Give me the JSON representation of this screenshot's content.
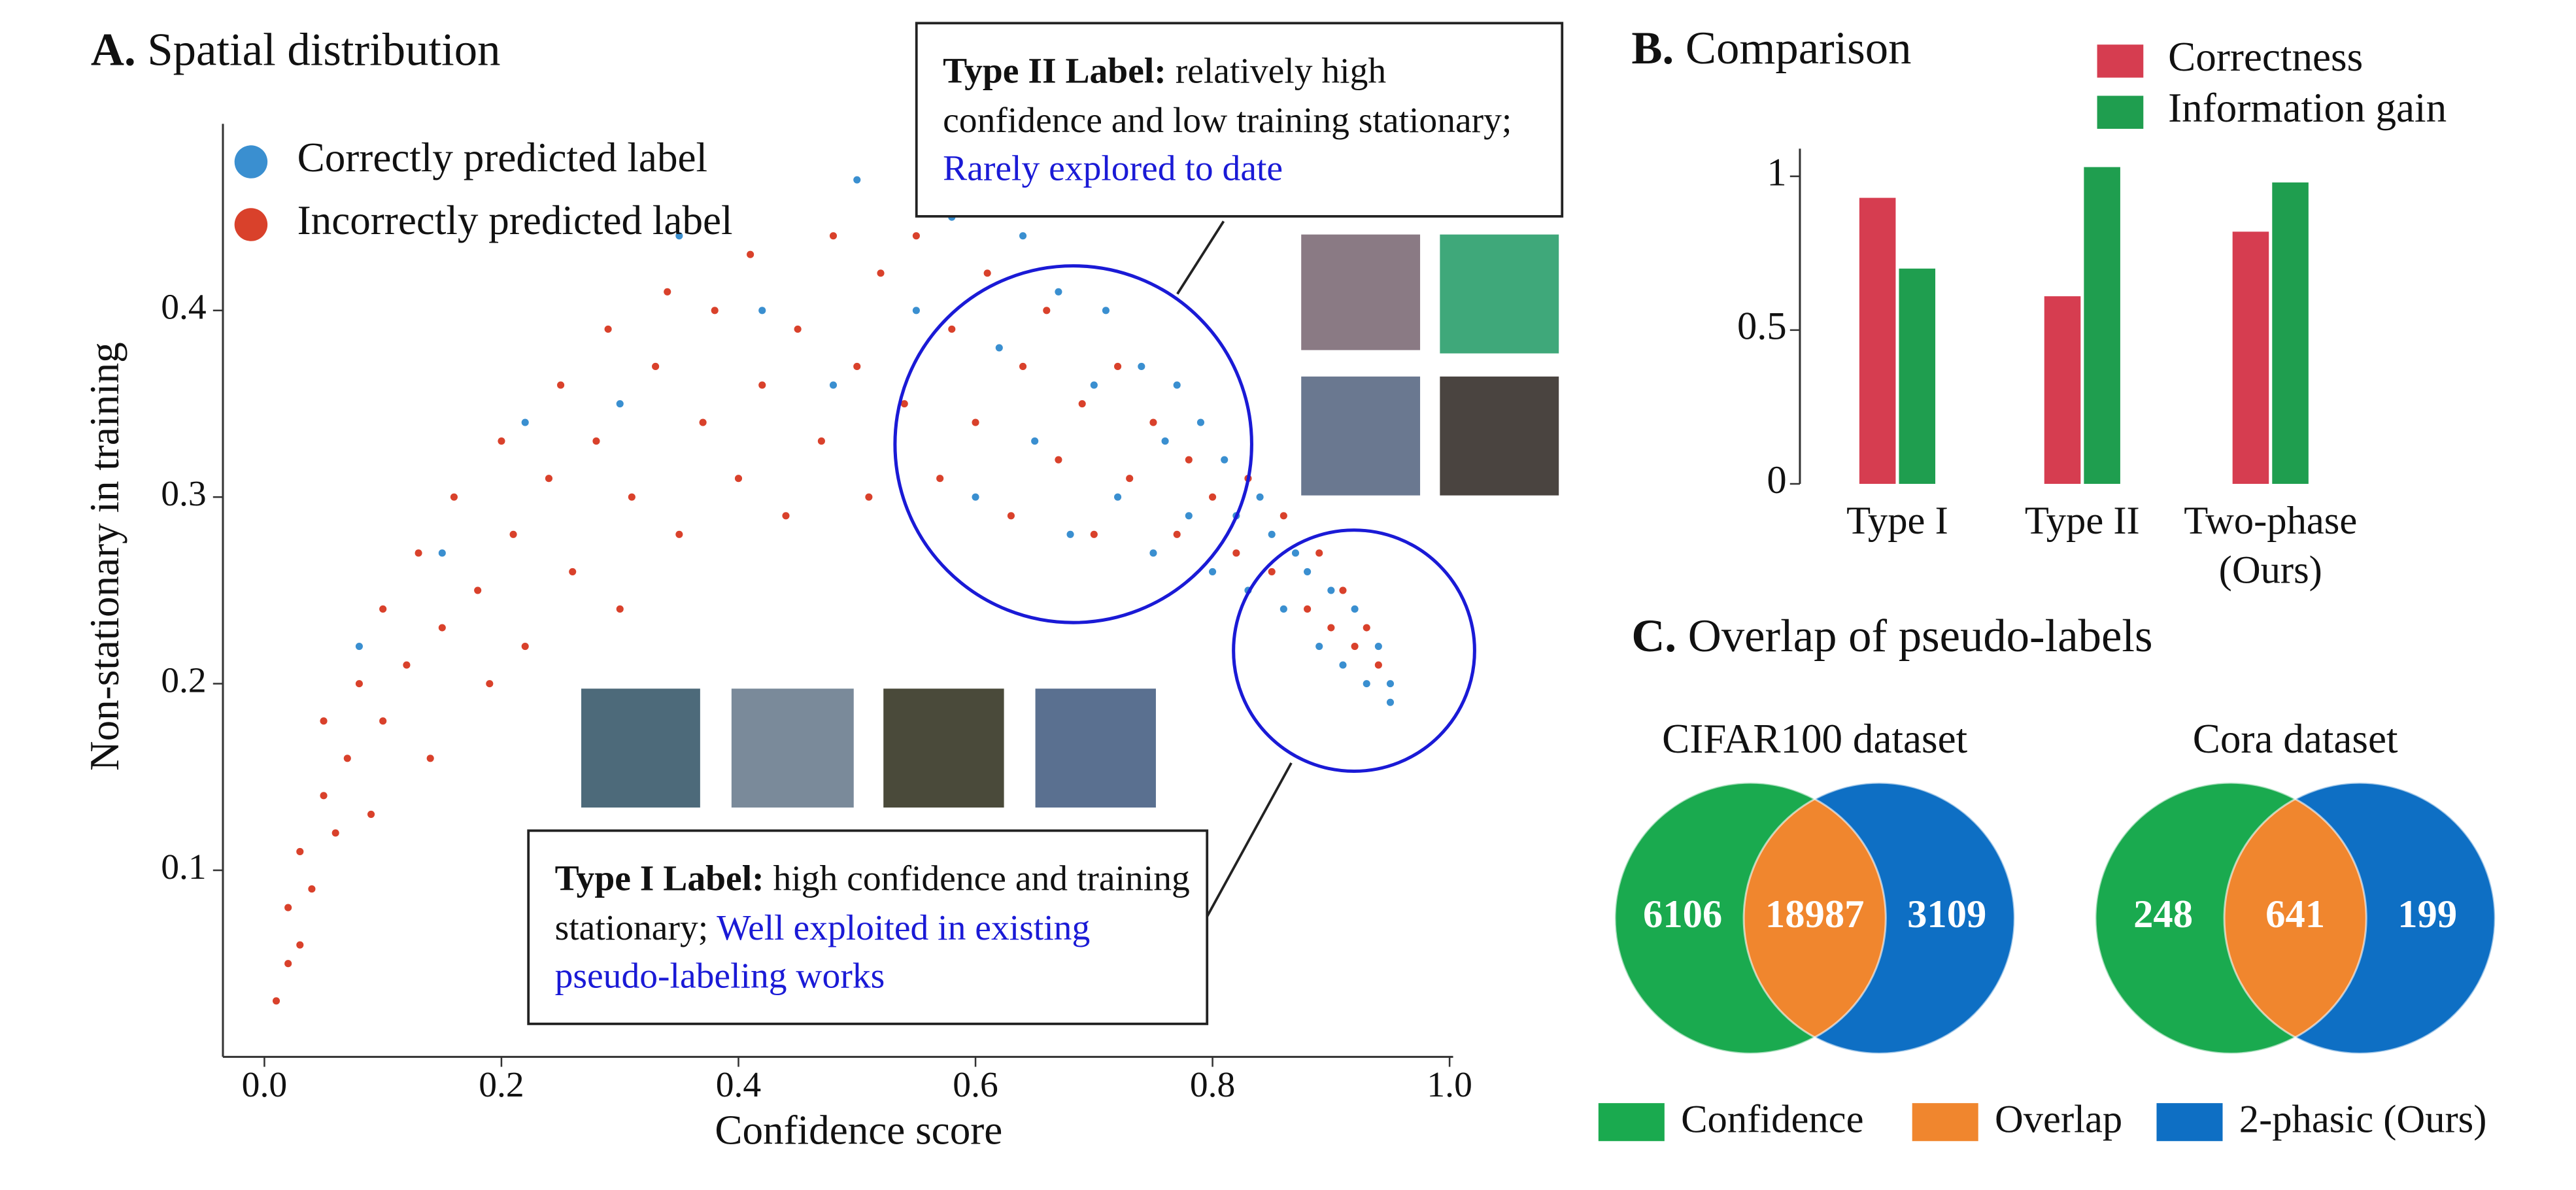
{
  "panels": [
    {
      "letter": "A.",
      "title": "Spatial distribution"
    },
    {
      "letter": "B.",
      "title": "Comparison"
    },
    {
      "letter": "C.",
      "title": "Overlap of pseudo-labels"
    }
  ],
  "annotations": [
    {
      "label": "Type II Label:",
      "text": "relatively high confidence and low training stationary;",
      "highlight": "Rarely explored to date"
    },
    {
      "label": "Type I Label:",
      "text": "high confidence and training stationary;",
      "highlight": "Well exploited in existing pseudo-labeling works"
    }
  ],
  "venn_legend": [
    {
      "name": "Confidence",
      "color": "#1aaa4f"
    },
    {
      "name": "Overlap",
      "color": "#f0862e"
    },
    {
      "name": "2-phasic (Ours)",
      "color": "#0e6fc4"
    }
  ],
  "chart_data": [
    {
      "type": "scatter",
      "x_label": "Confidence score",
      "y_label": "Non-stationary in training",
      "xlim": [
        -0.035,
        1.003
      ],
      "ylim": [
        0,
        0.5
      ],
      "xticks": [
        {
          "value": 0,
          "label": "0.0"
        },
        0.2,
        0.4,
        0.6,
        0.8,
        {
          "value": 1,
          "label": "1.0"
        }
      ],
      "yticks": [
        0.1,
        0.2,
        0.3,
        0.4
      ],
      "series": [
        {
          "name": "Correctly predicted label",
          "color": "#3a8fd0",
          "x": [
            0.08,
            0.15,
            0.22,
            0.3,
            0.35,
            0.42,
            0.48,
            0.5,
            0.55,
            0.58,
            0.6,
            0.62,
            0.64,
            0.65,
            0.67,
            0.68,
            0.7,
            0.71,
            0.72,
            0.74,
            0.75,
            0.76,
            0.77,
            0.78,
            0.79,
            0.8,
            0.81,
            0.82,
            0.83,
            0.84,
            0.85,
            0.86,
            0.87,
            0.88,
            0.89,
            0.9,
            0.91,
            0.92,
            0.93,
            0.94,
            0.95,
            0.95
          ],
          "values": [
            0.22,
            0.27,
            0.34,
            0.35,
            0.44,
            0.4,
            0.36,
            0.47,
            0.4,
            0.45,
            0.3,
            0.38,
            0.44,
            0.33,
            0.41,
            0.28,
            0.36,
            0.4,
            0.3,
            0.37,
            0.27,
            0.33,
            0.36,
            0.29,
            0.34,
            0.26,
            0.32,
            0.29,
            0.25,
            0.3,
            0.28,
            0.24,
            0.27,
            0.26,
            0.22,
            0.25,
            0.21,
            0.24,
            0.2,
            0.22,
            0.19,
            0.2
          ]
        },
        {
          "name": "Incorrectly predicted label",
          "color": "#d9412b",
          "x": [
            0.01,
            0.02,
            0.02,
            0.03,
            0.03,
            0.04,
            0.05,
            0.05,
            0.06,
            0.07,
            0.08,
            0.09,
            0.1,
            0.1,
            0.12,
            0.13,
            0.14,
            0.15,
            0.16,
            0.18,
            0.19,
            0.2,
            0.21,
            0.22,
            0.24,
            0.25,
            0.26,
            0.28,
            0.29,
            0.3,
            0.31,
            0.33,
            0.34,
            0.35,
            0.37,
            0.38,
            0.4,
            0.41,
            0.42,
            0.44,
            0.45,
            0.47,
            0.48,
            0.5,
            0.51,
            0.52,
            0.54,
            0.55,
            0.57,
            0.58,
            0.6,
            0.61,
            0.63,
            0.64,
            0.66,
            0.67,
            0.69,
            0.7,
            0.72,
            0.73,
            0.75,
            0.77,
            0.78,
            0.8,
            0.82,
            0.83,
            0.85,
            0.86,
            0.88,
            0.89,
            0.9,
            0.91,
            0.92,
            0.93,
            0.94
          ],
          "values": [
            0.03,
            0.05,
            0.08,
            0.06,
            0.11,
            0.09,
            0.14,
            0.18,
            0.12,
            0.16,
            0.2,
            0.13,
            0.18,
            0.24,
            0.21,
            0.27,
            0.16,
            0.23,
            0.3,
            0.25,
            0.2,
            0.33,
            0.28,
            0.22,
            0.31,
            0.36,
            0.26,
            0.33,
            0.39,
            0.24,
            0.3,
            0.37,
            0.41,
            0.28,
            0.34,
            0.4,
            0.31,
            0.43,
            0.36,
            0.29,
            0.39,
            0.33,
            0.44,
            0.37,
            0.3,
            0.42,
            0.35,
            0.44,
            0.31,
            0.39,
            0.34,
            0.42,
            0.29,
            0.37,
            0.4,
            0.32,
            0.35,
            0.28,
            0.37,
            0.31,
            0.34,
            0.28,
            0.32,
            0.3,
            0.27,
            0.31,
            0.26,
            0.29,
            0.24,
            0.27,
            0.23,
            0.25,
            0.22,
            0.23,
            0.21
          ]
        }
      ]
    },
    {
      "type": "bar",
      "categories": [
        "Type I",
        "Type II",
        "Two-phase (Ours)"
      ],
      "ylim": [
        0,
        1.09
      ],
      "yticks": [
        0,
        0.5,
        1
      ],
      "series": [
        {
          "name": "Correctness",
          "color": "#d63d50",
          "values": [
            0.93,
            0.61,
            0.82
          ]
        },
        {
          "name": "Information gain",
          "color": "#1f9e4f",
          "values": [
            0.7,
            1.03,
            0.98
          ]
        }
      ]
    },
    {
      "type": "venn",
      "title": "CIFAR100 dataset",
      "values": [
        6106,
        18987,
        3109
      ]
    },
    {
      "type": "venn",
      "title": "Cora dataset",
      "values": [
        248,
        641,
        199
      ]
    }
  ]
}
